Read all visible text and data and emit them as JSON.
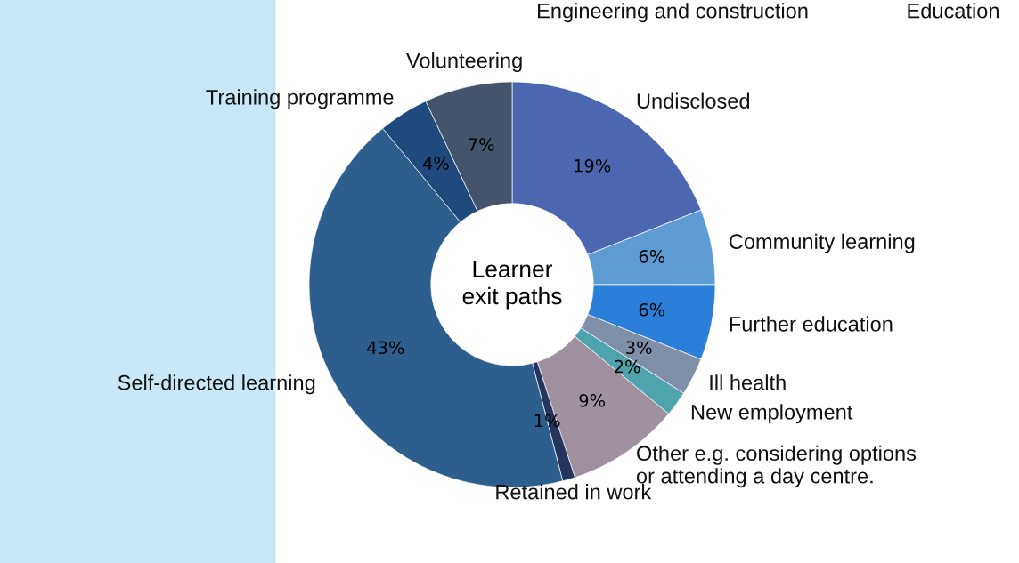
{
  "chart_data": {
    "type": "donut",
    "categories": [
      "Undisclosed",
      "Community learning",
      "Further education",
      "Ill health",
      "New employment",
      "Other e.g. considering options\nor attending a day centre.",
      "Retained in work",
      "Self-directed learning",
      "Training programme",
      "Volunteering"
    ],
    "values": [
      19,
      6,
      6,
      3,
      2,
      9,
      1,
      43,
      4,
      7
    ],
    "value_labels": [
      "19%",
      "6%",
      "6%",
      "3%",
      "2%",
      "9%",
      "1%",
      "43%",
      "4%",
      "7%"
    ],
    "colors": [
      "#4a67b0",
      "#5e9bd3",
      "#2b7fd9",
      "#7f8fa8",
      "#4fa3ad",
      "#a091a0",
      "#253560",
      "#2c5f8e",
      "#1f4a7e",
      "#44546a"
    ],
    "annotations": [
      "Learner\nexit paths",
      "Engineering and construction",
      "Education"
    ],
    "legend": false
  }
}
